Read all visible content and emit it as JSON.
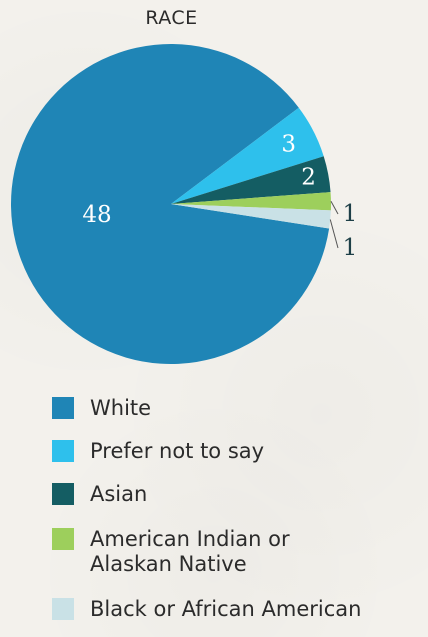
{
  "chart_data": {
    "type": "pie",
    "title": "RACE",
    "categories": [
      "White",
      "Prefer not to say",
      "Asian",
      "American Indian or\nAlaskan Native",
      "Black or African American"
    ],
    "values": [
      48,
      3,
      2,
      1,
      1
    ],
    "colors": [
      "#1f85b6",
      "#2ec0ec",
      "#145d63",
      "#9dcf5c",
      "#c9e1e6"
    ],
    "label_colors": [
      "#ffffff",
      "#ffffff",
      "#ffffff",
      "#1d3f47",
      "#1d3f47"
    ],
    "legend_position": "bottom"
  }
}
